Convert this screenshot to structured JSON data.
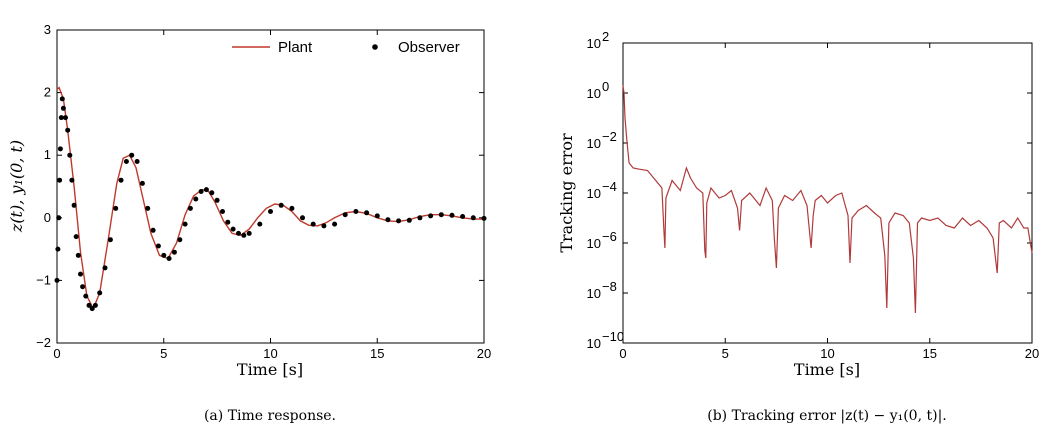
{
  "chart_data": [
    {
      "type": "line",
      "caption": "(a) Time response.",
      "xlabel": "Time [s]",
      "ylabel": "z(t), y₁(0, t)",
      "xlim": [
        0,
        20
      ],
      "ylim": [
        -2,
        3
      ],
      "xticks": [
        "0",
        "5",
        "10",
        "15",
        "20"
      ],
      "yticks": [
        "−2",
        "−1",
        "0",
        "1",
        "2",
        "3"
      ],
      "legend_position": "top-right",
      "grid": false,
      "colors": {
        "plant": "#c0392b",
        "observer": "#000000"
      },
      "series": [
        {
          "name": "Plant",
          "style": "line",
          "x": [
            0,
            0.1,
            0.3,
            0.5,
            0.8,
            1.1,
            1.4,
            1.7,
            2.0,
            2.4,
            2.8,
            3.1,
            3.4,
            3.7,
            4.0,
            4.4,
            4.8,
            5.2,
            5.6,
            6.0,
            6.4,
            6.8,
            7.1,
            7.4,
            7.8,
            8.2,
            8.6,
            9.0,
            9.4,
            9.8,
            10.2,
            10.6,
            11.0,
            11.4,
            11.8,
            12.2,
            12.6,
            13.0,
            13.5,
            14.0,
            14.5,
            15.0,
            15.5,
            16.0,
            16.5,
            17.0,
            17.5,
            18.0,
            18.5,
            19.0,
            19.5,
            20.0
          ],
          "y": [
            2.05,
            2.08,
            1.9,
            1.4,
            0.5,
            -0.55,
            -1.25,
            -1.45,
            -1.2,
            -0.35,
            0.55,
            0.95,
            1.0,
            0.8,
            0.35,
            -0.25,
            -0.6,
            -0.65,
            -0.4,
            0.05,
            0.35,
            0.45,
            0.42,
            0.25,
            -0.05,
            -0.25,
            -0.28,
            -0.18,
            0.0,
            0.15,
            0.22,
            0.2,
            0.1,
            -0.05,
            -0.12,
            -0.13,
            -0.08,
            0.0,
            0.08,
            0.1,
            0.07,
            0.0,
            -0.05,
            -0.06,
            -0.03,
            0.02,
            0.05,
            0.05,
            0.03,
            0.0,
            -0.02,
            -0.02
          ]
        },
        {
          "name": "Observer",
          "style": "markers",
          "x": [
            0,
            0.04,
            0.08,
            0.12,
            0.16,
            0.2,
            0.25,
            0.3,
            0.4,
            0.5,
            0.6,
            0.7,
            0.8,
            0.9,
            1.0,
            1.1,
            1.2,
            1.35,
            1.5,
            1.65,
            1.8,
            2.0,
            2.25,
            2.5,
            2.75,
            3.0,
            3.25,
            3.5,
            3.75,
            4.0,
            4.25,
            4.5,
            4.75,
            5.0,
            5.25,
            5.5,
            5.75,
            6.0,
            6.25,
            6.5,
            6.75,
            7.0,
            7.25,
            7.5,
            7.75,
            8.0,
            8.25,
            8.5,
            8.75,
            9.0,
            9.5,
            10.0,
            10.5,
            11.0,
            11.5,
            12.0,
            12.5,
            13.0,
            13.5,
            14.0,
            14.5,
            15.0,
            15.5,
            16.0,
            16.5,
            17.0,
            17.5,
            18.0,
            18.5,
            19.0,
            19.5,
            20.0
          ],
          "y": [
            -1.0,
            -0.5,
            0.0,
            0.6,
            1.1,
            1.6,
            1.9,
            1.75,
            1.6,
            1.4,
            1.0,
            0.6,
            0.2,
            -0.3,
            -0.6,
            -0.9,
            -1.1,
            -1.25,
            -1.4,
            -1.45,
            -1.4,
            -1.2,
            -0.8,
            -0.35,
            0.15,
            0.6,
            0.9,
            1.0,
            0.9,
            0.55,
            0.15,
            -0.2,
            -0.45,
            -0.6,
            -0.65,
            -0.55,
            -0.35,
            -0.1,
            0.15,
            0.3,
            0.42,
            0.45,
            0.4,
            0.28,
            0.1,
            -0.07,
            -0.18,
            -0.25,
            -0.28,
            -0.25,
            -0.1,
            0.1,
            0.2,
            0.15,
            0.0,
            -0.1,
            -0.13,
            -0.1,
            0.05,
            0.1,
            0.08,
            0.03,
            -0.03,
            -0.05,
            -0.04,
            0.0,
            0.03,
            0.05,
            0.04,
            0.02,
            0.0,
            -0.01
          ]
        }
      ]
    },
    {
      "type": "line",
      "caption": "(b) Tracking error |z(t) − y₁(0, t)|.",
      "xlabel": "Time [s]",
      "ylabel": "Tracking error",
      "yscale": "log",
      "xlim": [
        0,
        20
      ],
      "ylim_exponent": [
        -10,
        2
      ],
      "xticks": [
        "0",
        "5",
        "10",
        "15",
        "20"
      ],
      "ytick_exponents": [
        "2",
        "0",
        "-2",
        "-4",
        "-6",
        "-8",
        "-10"
      ],
      "ytick_base": "10",
      "grid": false,
      "colors": {
        "error": "#b03a3a"
      },
      "series": [
        {
          "style": "line",
          "x": [
            0,
            0.05,
            0.1,
            0.2,
            0.3,
            0.5,
            0.8,
            1.2,
            1.5,
            1.9,
            2.0,
            2.05,
            2.1,
            2.4,
            2.8,
            3.1,
            3.3,
            3.6,
            3.9,
            4.0,
            4.05,
            4.1,
            4.3,
            4.7,
            5.0,
            5.3,
            5.6,
            5.7,
            5.8,
            6.2,
            6.7,
            7.0,
            7.3,
            7.4,
            7.5,
            7.6,
            7.9,
            8.3,
            8.7,
            9.0,
            9.2,
            9.3,
            9.4,
            9.7,
            10.0,
            10.4,
            10.7,
            11.0,
            11.1,
            11.2,
            11.5,
            11.9,
            12.3,
            12.6,
            12.8,
            12.9,
            13.0,
            13.3,
            13.7,
            14.0,
            14.2,
            14.3,
            14.4,
            14.6,
            15.0,
            15.4,
            15.8,
            16.2,
            16.6,
            17.0,
            17.4,
            17.8,
            18.1,
            18.3,
            18.4,
            18.6,
            19.0,
            19.3,
            19.6,
            19.8,
            20.0
          ],
          "y_log10": [
            0.3,
            0.0,
            -1.0,
            -2.0,
            -2.8,
            -3.0,
            -3.05,
            -3.1,
            -3.4,
            -3.8,
            -5.5,
            -6.2,
            -4.2,
            -3.5,
            -3.9,
            -3.0,
            -3.4,
            -3.8,
            -4.0,
            -6.3,
            -6.6,
            -4.4,
            -3.8,
            -4.2,
            -4.1,
            -3.9,
            -4.6,
            -5.5,
            -4.3,
            -4.0,
            -4.5,
            -3.8,
            -4.3,
            -5.8,
            -7.0,
            -4.6,
            -4.1,
            -4.3,
            -3.9,
            -4.5,
            -6.2,
            -4.9,
            -4.3,
            -4.1,
            -4.4,
            -4.1,
            -4.0,
            -4.9,
            -6.8,
            -5.0,
            -4.7,
            -4.5,
            -4.8,
            -5.0,
            -6.5,
            -8.6,
            -5.2,
            -4.8,
            -4.9,
            -5.2,
            -6.6,
            -8.8,
            -5.2,
            -5.0,
            -5.1,
            -5.0,
            -5.3,
            -5.4,
            -5.0,
            -5.3,
            -5.1,
            -5.4,
            -5.8,
            -7.2,
            -5.2,
            -5.1,
            -5.4,
            -5.0,
            -5.4,
            -5.4,
            -6.4
          ]
        }
      ]
    }
  ]
}
